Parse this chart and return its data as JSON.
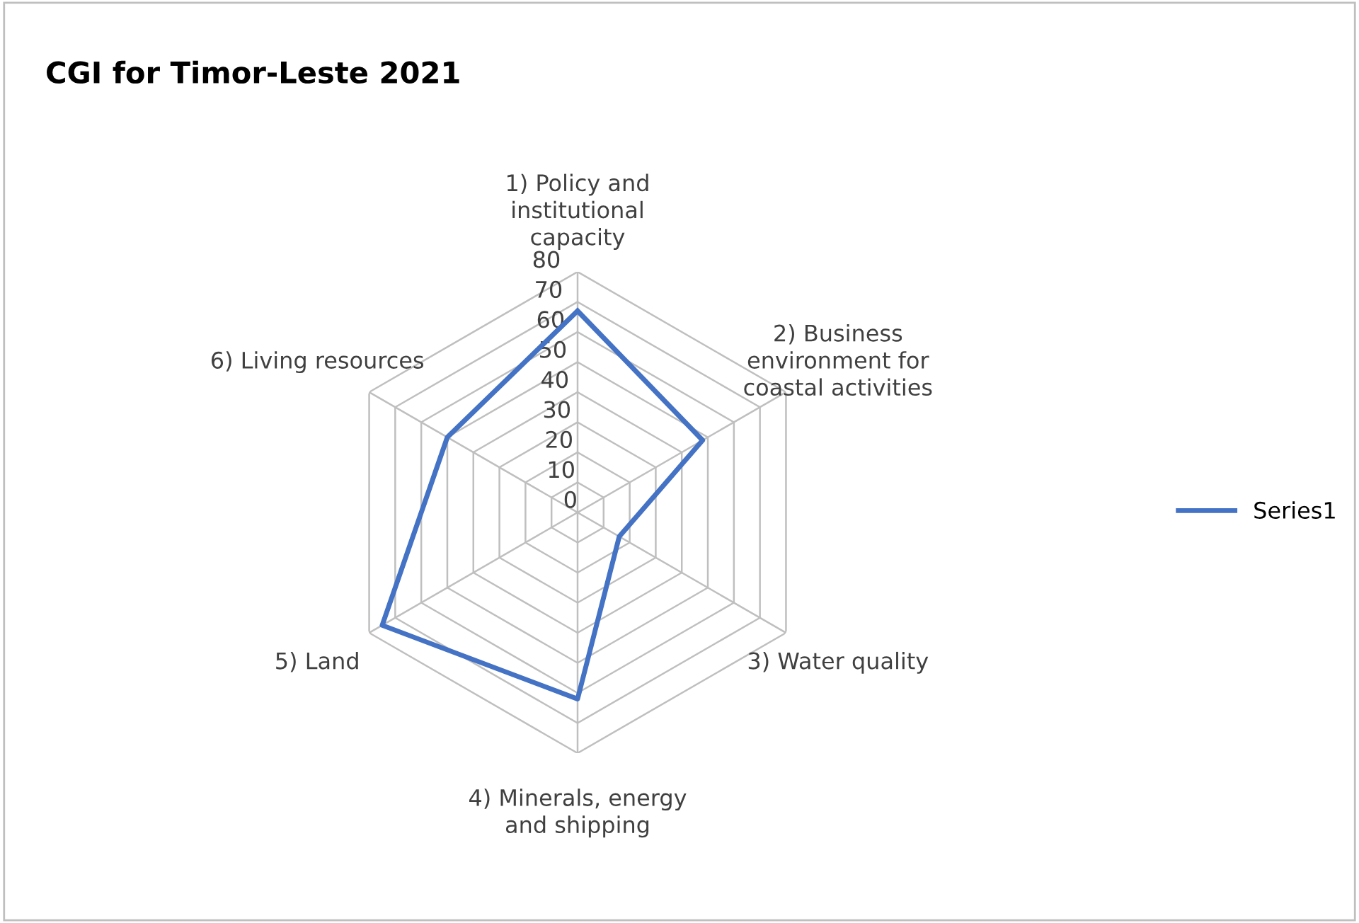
{
  "chart_data": {
    "type": "radar",
    "title": "CGI for Timor-Leste 2021",
    "categories": [
      "1) Policy and\ninstitutional\ncapacity",
      "2) Business\nenvironment for\ncoastal activities",
      "3) Water quality",
      "4) Minerals, energy\nand shipping",
      "5) Land",
      "6) Living resources"
    ],
    "series": [
      {
        "name": "Series1",
        "color": "#4472c4",
        "values": [
          67,
          48,
          16,
          62,
          75,
          50
        ]
      }
    ],
    "ylim": [
      0,
      80
    ],
    "yticks": [
      0,
      10,
      20,
      30,
      40,
      50,
      60,
      70,
      80
    ],
    "grid": true,
    "legend": "right"
  }
}
